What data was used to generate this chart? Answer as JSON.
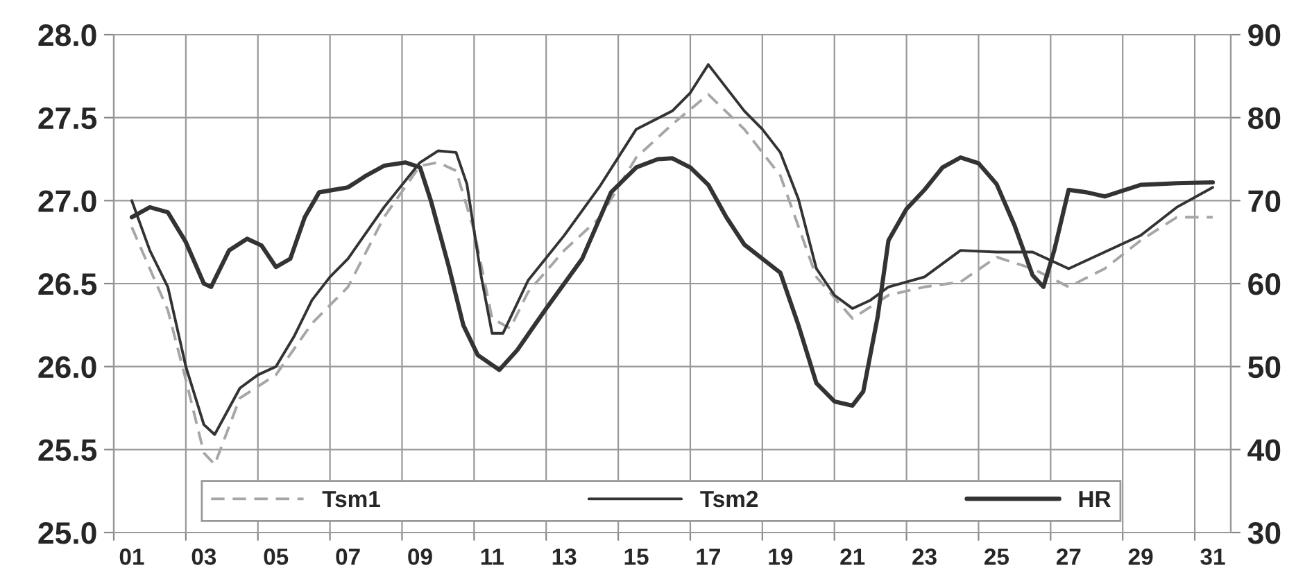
{
  "chart_data": {
    "type": "line",
    "series": [
      {
        "name": "Tsm1",
        "color": "#a6a6a6",
        "line_style": "dashed",
        "x": [
          1,
          2,
          2.5,
          3,
          3.3,
          4,
          5,
          6,
          7,
          8,
          9,
          9.5,
          10,
          10.5,
          11,
          11.5,
          12,
          13,
          14,
          15,
          16,
          17,
          18,
          19,
          20,
          21,
          22,
          23,
          24,
          25,
          26,
          27,
          28,
          29,
          30,
          31
        ],
        "values": [
          26.84,
          26.34,
          25.92,
          25.48,
          25.41,
          25.81,
          25.95,
          26.26,
          26.48,
          26.9,
          27.21,
          27.23,
          27.18,
          26.82,
          26.29,
          26.23,
          26.45,
          26.7,
          26.9,
          27.26,
          27.46,
          27.64,
          27.43,
          27.15,
          26.54,
          26.29,
          26.43,
          26.48,
          26.51,
          26.66,
          26.59,
          26.48,
          26.59,
          26.76,
          26.9,
          26.9
        ]
      },
      {
        "name": "Tsm2",
        "color": "#333333",
        "line_style": "solid",
        "x": [
          1,
          1.5,
          2,
          2.5,
          3,
          3.3,
          4,
          4.5,
          5,
          5.5,
          6,
          6.5,
          7,
          8,
          9,
          9.5,
          10,
          10.3,
          10.7,
          11,
          11.3,
          12,
          13,
          14,
          15,
          16,
          16.5,
          17,
          18,
          18.5,
          19,
          19.5,
          20,
          20.5,
          21,
          21.5,
          22,
          23,
          24,
          25,
          26,
          27,
          28,
          29,
          30,
          31
        ],
        "values": [
          27.0,
          26.7,
          26.48,
          26.0,
          25.65,
          25.59,
          25.87,
          25.95,
          26.0,
          26.18,
          26.4,
          26.54,
          26.65,
          26.96,
          27.23,
          27.3,
          27.29,
          27.1,
          26.54,
          26.2,
          26.2,
          26.52,
          26.79,
          27.09,
          27.43,
          27.54,
          27.65,
          27.82,
          27.54,
          27.43,
          27.29,
          27.01,
          26.59,
          26.43,
          26.35,
          26.4,
          26.48,
          26.54,
          26.7,
          26.69,
          26.69,
          26.59,
          26.69,
          26.79,
          26.96,
          27.08
        ]
      },
      {
        "name": "HR",
        "color": "#333333",
        "line_style": "solid",
        "axis": "y2",
        "x": [
          1,
          1.5,
          2,
          2.5,
          3,
          3.2,
          3.7,
          4.2,
          4.6,
          5,
          5.4,
          5.8,
          6.2,
          7,
          7.5,
          8,
          8.6,
          9,
          9.3,
          9.8,
          10.2,
          10.6,
          11.2,
          11.7,
          12.5,
          13.5,
          14.3,
          15,
          15.6,
          16,
          16.5,
          17,
          17.5,
          18,
          18.5,
          19,
          19.5,
          20,
          20.5,
          21,
          21.3,
          21.7,
          22,
          22.5,
          23,
          23.5,
          24,
          24.5,
          25,
          25.5,
          26,
          26.3,
          26.6,
          27,
          27.5,
          28,
          29,
          30,
          31
        ],
        "values": [
          68,
          69.2,
          68.6,
          65,
          60,
          59.6,
          64,
          65.4,
          64.6,
          62,
          63,
          68,
          71,
          71.6,
          73,
          74.2,
          74.6,
          74,
          70,
          62,
          55,
          51.4,
          49.6,
          52,
          57,
          63,
          71,
          74,
          75,
          75.1,
          74,
          71.9,
          68,
          64.7,
          63,
          61.3,
          55,
          48,
          45.8,
          45.3,
          47,
          56,
          65.2,
          69,
          71.3,
          74,
          75.2,
          74.5,
          72,
          67,
          61,
          59.6,
          64,
          71.3,
          71,
          70.5,
          71.9,
          72.1,
          72.2
        ]
      }
    ],
    "xlim": [
      0.5,
      31.5
    ],
    "xticks": [
      {
        "value": 0.5,
        "label": null
      },
      {
        "value": 1,
        "label": "01"
      },
      {
        "value": 2.5,
        "label": null
      },
      {
        "value": 3,
        "label": "03"
      },
      {
        "value": 4.5,
        "label": null
      },
      {
        "value": 5,
        "label": "05"
      },
      {
        "value": 6.5,
        "label": null
      },
      {
        "value": 7,
        "label": "07"
      },
      {
        "value": 8.5,
        "label": null
      },
      {
        "value": 9,
        "label": "09"
      },
      {
        "value": 10.5,
        "label": null
      },
      {
        "value": 11,
        "label": "11"
      },
      {
        "value": 12.5,
        "label": null
      },
      {
        "value": 13,
        "label": "13"
      },
      {
        "value": 14.5,
        "label": null
      },
      {
        "value": 15,
        "label": "15"
      },
      {
        "value": 16.5,
        "label": null
      },
      {
        "value": 17,
        "label": "17"
      },
      {
        "value": 18.5,
        "label": null
      },
      {
        "value": 19,
        "label": "19"
      },
      {
        "value": 20.5,
        "label": null
      },
      {
        "value": 21,
        "label": "21"
      },
      {
        "value": 22.5,
        "label": null
      },
      {
        "value": 23,
        "label": "23"
      },
      {
        "value": 24.5,
        "label": null
      },
      {
        "value": 25,
        "label": "25"
      },
      {
        "value": 26.5,
        "label": null
      },
      {
        "value": 27,
        "label": "27"
      },
      {
        "value": 28.5,
        "label": null
      },
      {
        "value": 29,
        "label": "29"
      },
      {
        "value": 30.5,
        "label": null
      },
      {
        "value": 31,
        "label": "31"
      }
    ],
    "ylim": [
      25,
      28
    ],
    "yticks": [
      {
        "value": 25,
        "label": "25.0"
      },
      {
        "value": 25.5,
        "label": "25.5"
      },
      {
        "value": 26,
        "label": "26.0"
      },
      {
        "value": 26.5,
        "label": "26.5"
      },
      {
        "value": 27,
        "label": "27.0"
      },
      {
        "value": 27.5,
        "label": "27.5"
      },
      {
        "value": 28,
        "label": "28.0"
      }
    ],
    "y2lim": [
      30,
      90
    ],
    "y2ticks": [
      30,
      40,
      50,
      60,
      70,
      80,
      90
    ],
    "grid": true,
    "legend": "bottom",
    "marker": "none"
  }
}
